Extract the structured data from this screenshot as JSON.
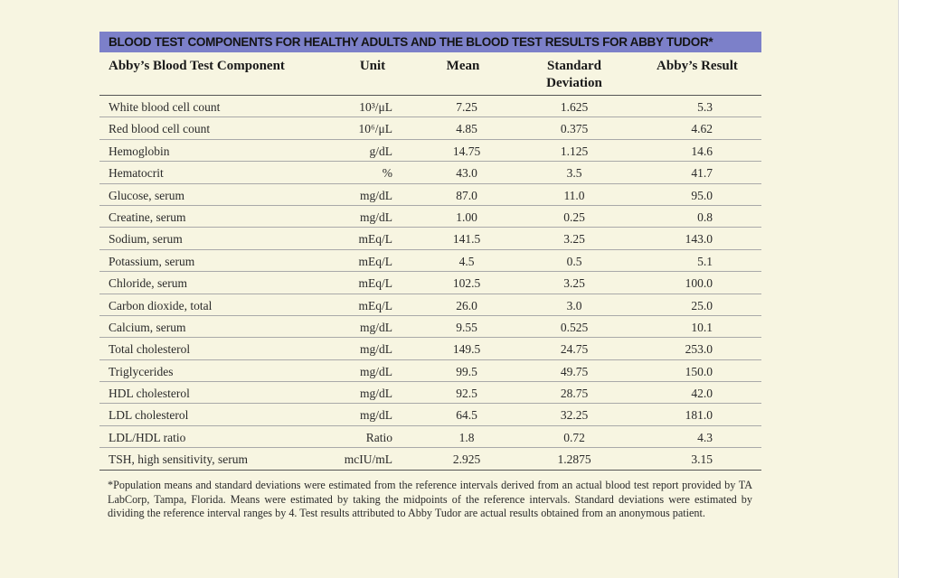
{
  "title": "BLOOD TEST COMPONENTS FOR HEALTHY ADULTS AND THE BLOOD TEST RESULTS FOR ABBY TUDOR*",
  "headers": {
    "component": "Abby’s Blood Test Component",
    "unit": "Unit",
    "mean": "Mean",
    "sd_line1": "Standard",
    "sd_line2": "Deviation",
    "result": "Abby’s Result"
  },
  "rows": [
    {
      "component": "White blood cell count",
      "unit": "10³/μL",
      "mean": "7.25",
      "sd": "1.625",
      "result": "5.3"
    },
    {
      "component": "Red blood cell count",
      "unit": "10⁶/μL",
      "mean": "4.85",
      "sd": "0.375",
      "result": "4.62"
    },
    {
      "component": "Hemoglobin",
      "unit": "g/dL",
      "mean": "14.75",
      "sd": "1.125",
      "result": "14.6"
    },
    {
      "component": "Hematocrit",
      "unit": "%",
      "mean": "43.0",
      "sd": "3.5",
      "result": "41.7"
    },
    {
      "component": "Glucose, serum",
      "unit": "mg/dL",
      "mean": "87.0",
      "sd": "11.0",
      "result": "95.0"
    },
    {
      "component": "Creatine, serum",
      "unit": "mg/dL",
      "mean": "1.00",
      "sd": "0.25",
      "result": "0.8"
    },
    {
      "component": "Sodium, serum",
      "unit": "mEq/L",
      "mean": "141.5",
      "sd": "3.25",
      "result": "143.0"
    },
    {
      "component": "Potassium, serum",
      "unit": "mEq/L",
      "mean": "4.5",
      "sd": "0.5",
      "result": "5.1"
    },
    {
      "component": "Chloride, serum",
      "unit": "mEq/L",
      "mean": "102.5",
      "sd": "3.25",
      "result": "100.0"
    },
    {
      "component": "Carbon dioxide, total",
      "unit": "mEq/L",
      "mean": "26.0",
      "sd": "3.0",
      "result": "25.0"
    },
    {
      "component": "Calcium, serum",
      "unit": "mg/dL",
      "mean": "9.55",
      "sd": "0.525",
      "result": "10.1"
    },
    {
      "component": "Total cholesterol",
      "unit": "mg/dL",
      "mean": "149.5",
      "sd": "24.75",
      "result": "253.0"
    },
    {
      "component": "Triglycerides",
      "unit": "mg/dL",
      "mean": "99.5",
      "sd": "49.75",
      "result": "150.0"
    },
    {
      "component": "HDL cholesterol",
      "unit": "mg/dL",
      "mean": "92.5",
      "sd": "28.75",
      "result": "42.0"
    },
    {
      "component": "LDL cholesterol",
      "unit": "mg/dL",
      "mean": "64.5",
      "sd": "32.25",
      "result": "181.0"
    },
    {
      "component": "LDL/HDL ratio",
      "unit": "Ratio",
      "mean": "1.8",
      "sd": "0.72",
      "result": "4.3"
    },
    {
      "component": "TSH, high sensitivity, serum",
      "unit": "mcIU/mL",
      "mean": "2.925",
      "sd": "1.2875",
      "result": "3.15"
    }
  ],
  "footnote": "*Population means and standard deviations were estimated from the reference intervals derived from an actual blood test report provided by TA LabCorp, Tampa, Florida. Means were estimated by taking the midpoints of the reference intervals. Standard deviations were estimated by dividing the reference interval ranges by 4. Test results attributed to Abby Tudor are actual results obtained from an anonymous patient."
}
